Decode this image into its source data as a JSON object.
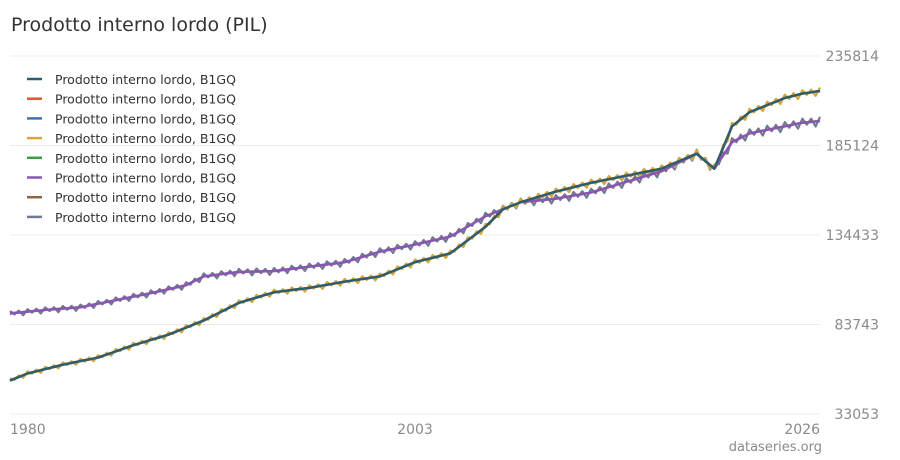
{
  "chart_data": {
    "type": "line",
    "title": "Prodotto interno lordo (PIL)",
    "xlabel": "",
    "ylabel": "",
    "x_ticks": [
      "1980",
      "2003",
      "2026"
    ],
    "y_ticks": [
      235814,
      185124,
      134433,
      83743,
      33053
    ],
    "xlim": [
      1980,
      2026
    ],
    "ylim": [
      33053,
      235814
    ],
    "grid": true,
    "legend_position": "top-left",
    "series": [
      {
        "name": "Prodotto interno lordo, B1GQ",
        "color": "#2c5f6e",
        "group": "a",
        "style": "smooth"
      },
      {
        "name": "Prodotto interno lordo, B1GQ",
        "color": "#e8542c",
        "group": "a",
        "style": "smooth"
      },
      {
        "name": "Prodotto interno lordo, B1GQ",
        "color": "#3d73b3",
        "group": "a",
        "style": "smooth"
      },
      {
        "name": "Prodotto interno lordo, B1GQ",
        "color": "#d7a73a",
        "group": "a",
        "style": "seasonal"
      },
      {
        "name": "Prodotto interno lordo, B1GQ",
        "color": "#3f9a45",
        "group": "a",
        "style": "smooth"
      },
      {
        "name": "Prodotto interno lordo, B1GQ",
        "color": "#8a55b5",
        "group": "b",
        "style": "smooth"
      },
      {
        "name": "Prodotto interno lordo, B1GQ",
        "color": "#8e6444",
        "group": "b",
        "style": "smooth"
      },
      {
        "name": "Prodotto interno lordo, B1GQ",
        "color": "#6d7b93",
        "group": "b",
        "style": "seasonal"
      }
    ],
    "group_profiles": {
      "a": {
        "x": [
          1980,
          1981,
          1983,
          1985,
          1987,
          1989,
          1991,
          1993,
          1995,
          1997,
          1999,
          2001,
          2003,
          2005,
          2007,
          2008,
          2009,
          2011,
          2013,
          2015,
          2017,
          2019,
          2020,
          2021,
          2022,
          2024,
          2025,
          2026
        ],
        "y": [
          52000,
          56000,
          61000,
          65000,
          72000,
          78000,
          86000,
          96000,
          102000,
          104500,
          108000,
          111000,
          119000,
          124000,
          139000,
          149000,
          153000,
          159000,
          164000,
          168000,
          172000,
          180500,
          172000,
          196000,
          204000,
          212000,
          214500,
          216000
        ]
      },
      "b": {
        "x": [
          1980,
          1982,
          1984,
          1986,
          1988,
          1990,
          1991,
          1993,
          1995,
          1997,
          1999,
          2001,
          2003,
          2005,
          2007,
          2009,
          2011,
          2013,
          2015,
          2017,
          2019,
          2020,
          2021,
          2022,
          2024,
          2025,
          2026
        ],
        "y": [
          90000,
          92000,
          93500,
          97500,
          101500,
          106000,
          111000,
          113500,
          114000,
          116500,
          119000,
          125000,
          129000,
          133500,
          145000,
          153000,
          155000,
          158500,
          164500,
          170500,
          180500,
          172000,
          187000,
          192000,
          196000,
          198000,
          199000
        ]
      }
    }
  }
}
